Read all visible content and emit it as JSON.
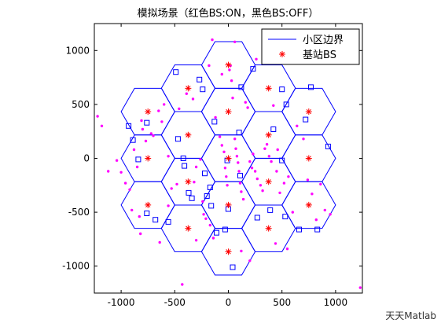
{
  "chart_data": {
    "type": "scatter",
    "title": "模拟场景（红色BS:ON，黑色BS:OFF）",
    "xlim": [
      -1250,
      1250
    ],
    "ylim": [
      -1250,
      1250
    ],
    "xticks": [
      -1000,
      -500,
      0,
      500,
      1000
    ],
    "yticks": [
      -1000,
      -500,
      0,
      500,
      1000
    ],
    "grid": false,
    "legend_position": "top-right",
    "legend": [
      {
        "label": "小区边界",
        "marker": "line",
        "color": "#0000ff"
      },
      {
        "label": "基站BS",
        "marker": "star",
        "color": "#ff0000"
      }
    ],
    "hex_radius": 250,
    "base_stations": [
      [
        0,
        0
      ],
      [
        0,
        433
      ],
      [
        0,
        -433
      ],
      [
        0,
        866
      ],
      [
        0,
        -866
      ],
      [
        375,
        217
      ],
      [
        375,
        -217
      ],
      [
        -375,
        217
      ],
      [
        -375,
        -217
      ],
      [
        375,
        650
      ],
      [
        375,
        -650
      ],
      [
        -375,
        650
      ],
      [
        -375,
        -650
      ],
      [
        750,
        433
      ],
      [
        750,
        0
      ],
      [
        750,
        -433
      ],
      [
        -750,
        433
      ],
      [
        -750,
        0
      ],
      [
        -750,
        -433
      ]
    ],
    "blue_squares": [
      [
        -490,
        800
      ],
      [
        -240,
        640
      ],
      [
        120,
        660
      ],
      [
        230,
        830
      ],
      [
        -270,
        730
      ],
      [
        540,
        500
      ],
      [
        500,
        640
      ],
      [
        -930,
        300
      ],
      [
        -760,
        330
      ],
      [
        -890,
        170
      ],
      [
        -840,
        -10
      ],
      [
        -680,
        -570
      ],
      [
        -760,
        -510
      ],
      [
        -560,
        -590
      ],
      [
        -470,
        180
      ],
      [
        -130,
        340
      ],
      [
        100,
        240
      ],
      [
        420,
        270
      ],
      [
        -410,
        -70
      ],
      [
        -370,
        -320
      ],
      [
        -340,
        -370
      ],
      [
        -160,
        -440
      ],
      [
        -30,
        -660
      ],
      [
        -110,
        -690
      ],
      [
        40,
        -1010
      ],
      [
        270,
        -550
      ],
      [
        530,
        -540
      ],
      [
        660,
        -660
      ],
      [
        830,
        -660
      ],
      [
        930,
        110
      ],
      [
        770,
        660
      ],
      [
        720,
        360
      ],
      [
        500,
        -20
      ],
      [
        390,
        -480
      ],
      [
        -170,
        -270
      ],
      [
        -200,
        -350
      ],
      [
        -220,
        -140
      ],
      [
        -10,
        -20
      ],
      [
        110,
        -160
      ],
      [
        -420,
        0
      ],
      [
        -1,
        -470
      ]
    ],
    "magenta_points": [
      [
        -1220,
        390
      ],
      [
        -1180,
        300
      ],
      [
        -1120,
        -120
      ],
      [
        -1040,
        -20
      ],
      [
        -1000,
        -130
      ],
      [
        -960,
        -230
      ],
      [
        -920,
        -290
      ],
      [
        -900,
        -480
      ],
      [
        -830,
        -540
      ],
      [
        -820,
        -700
      ],
      [
        -880,
        80
      ],
      [
        -850,
        -80
      ],
      [
        -810,
        350
      ],
      [
        -800,
        270
      ],
      [
        -770,
        160
      ],
      [
        -720,
        230
      ],
      [
        -700,
        210
      ],
      [
        -650,
        440
      ],
      [
        -620,
        340
      ],
      [
        -600,
        500
      ],
      [
        -560,
        -440
      ],
      [
        -640,
        -780
      ],
      [
        -560,
        20
      ],
      [
        -530,
        -280
      ],
      [
        -480,
        -240
      ],
      [
        -460,
        460
      ],
      [
        -390,
        600
      ],
      [
        -330,
        550
      ],
      [
        -320,
        -220
      ],
      [
        -300,
        -80
      ],
      [
        -260,
        -10
      ],
      [
        -240,
        -400
      ],
      [
        -230,
        -520
      ],
      [
        -210,
        -560
      ],
      [
        -170,
        -620
      ],
      [
        -150,
        1100
      ],
      [
        -120,
        380
      ],
      [
        -80,
        200
      ],
      [
        -60,
        120
      ],
      [
        -40,
        60
      ],
      [
        -30,
        -90
      ],
      [
        -20,
        -170
      ],
      [
        -10,
        -250
      ],
      [
        10,
        820
      ],
      [
        20,
        860
      ],
      [
        30,
        720
      ],
      [
        40,
        560
      ],
      [
        60,
        180
      ],
      [
        70,
        90
      ],
      [
        80,
        20
      ],
      [
        90,
        -40
      ],
      [
        100,
        -120
      ],
      [
        110,
        -230
      ],
      [
        120,
        -310
      ],
      [
        140,
        -380
      ],
      [
        160,
        520
      ],
      [
        180,
        470
      ],
      [
        200,
        -30
      ],
      [
        220,
        -90
      ],
      [
        230,
        40
      ],
      [
        250,
        -120
      ],
      [
        270,
        -190
      ],
      [
        300,
        -250
      ],
      [
        320,
        -300
      ],
      [
        340,
        90
      ],
      [
        360,
        130
      ],
      [
        380,
        20
      ],
      [
        400,
        -30
      ],
      [
        420,
        490
      ],
      [
        450,
        -120
      ],
      [
        460,
        80
      ],
      [
        480,
        -320
      ],
      [
        520,
        -230
      ],
      [
        560,
        -170
      ],
      [
        600,
        -500
      ],
      [
        640,
        300
      ],
      [
        700,
        180
      ],
      [
        740,
        -200
      ],
      [
        780,
        -330
      ],
      [
        820,
        -570
      ],
      [
        860,
        -240
      ],
      [
        900,
        -480
      ],
      [
        950,
        -520
      ],
      [
        -430,
        -1170
      ],
      [
        -300,
        -760
      ],
      [
        -140,
        -740
      ],
      [
        120,
        -860
      ],
      [
        200,
        -950
      ],
      [
        440,
        -790
      ],
      [
        550,
        -840
      ],
      [
        1230,
        -1200
      ],
      [
        60,
        1080
      ],
      [
        -60,
        780
      ],
      [
        -180,
        860
      ],
      [
        260,
        920
      ]
    ]
  },
  "watermark": "天天Matlab"
}
